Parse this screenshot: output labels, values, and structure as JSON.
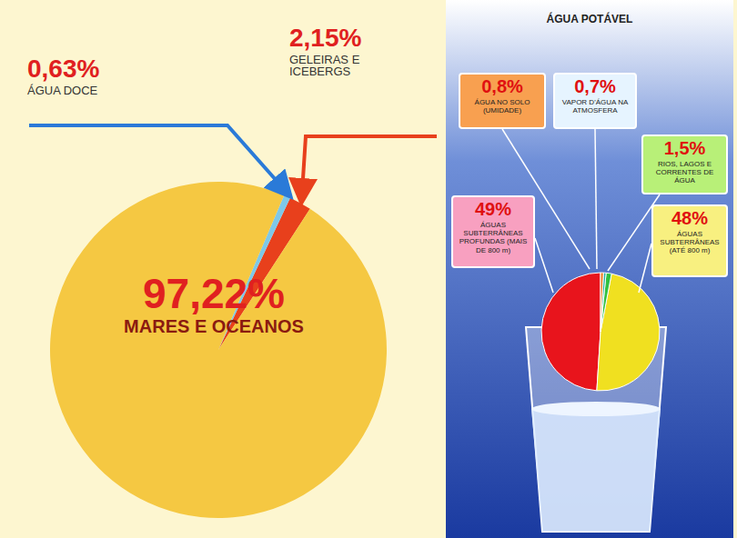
{
  "chart_data": [
    {
      "type": "pie",
      "categories": [
        "GELEIRAS E ICEBERGS",
        "ÁGUA DOCE",
        "MARES E OCEANOS"
      ],
      "values": [
        2.15,
        0.63,
        97.22
      ],
      "value_labels": [
        "2,15%",
        "0,63%",
        "97,22%"
      ],
      "colors": [
        "#e8401c",
        "#7ec8e8",
        "#f5c842"
      ],
      "data_labels": true
    },
    {
      "type": "pie",
      "title": "ÁGUA POTÁVEL",
      "categories": [
        "ÁGUAS SUBTERRÂNEAS PROFUNDAS (MAIS DE 800 m)",
        "ÁGUAS SUBTERRÂNEAS (ATÉ 800 m)",
        "RIOS, LAGOS E CORRENTES DE ÁGUA",
        "VAPOR D'ÁGUA NA ATMOSFERA",
        "ÁGUA NO SOLO (UMIDADE)"
      ],
      "values": [
        49,
        48,
        1.5,
        0.7,
        0.8
      ],
      "value_labels": [
        "49%",
        "48%",
        "1,5%",
        "0,7%",
        "0,8%"
      ],
      "colors": [
        "#e8141c",
        "#f0e020",
        "#30c040",
        "#20b0a0",
        "#f08020"
      ],
      "data_labels": true
    }
  ]
}
